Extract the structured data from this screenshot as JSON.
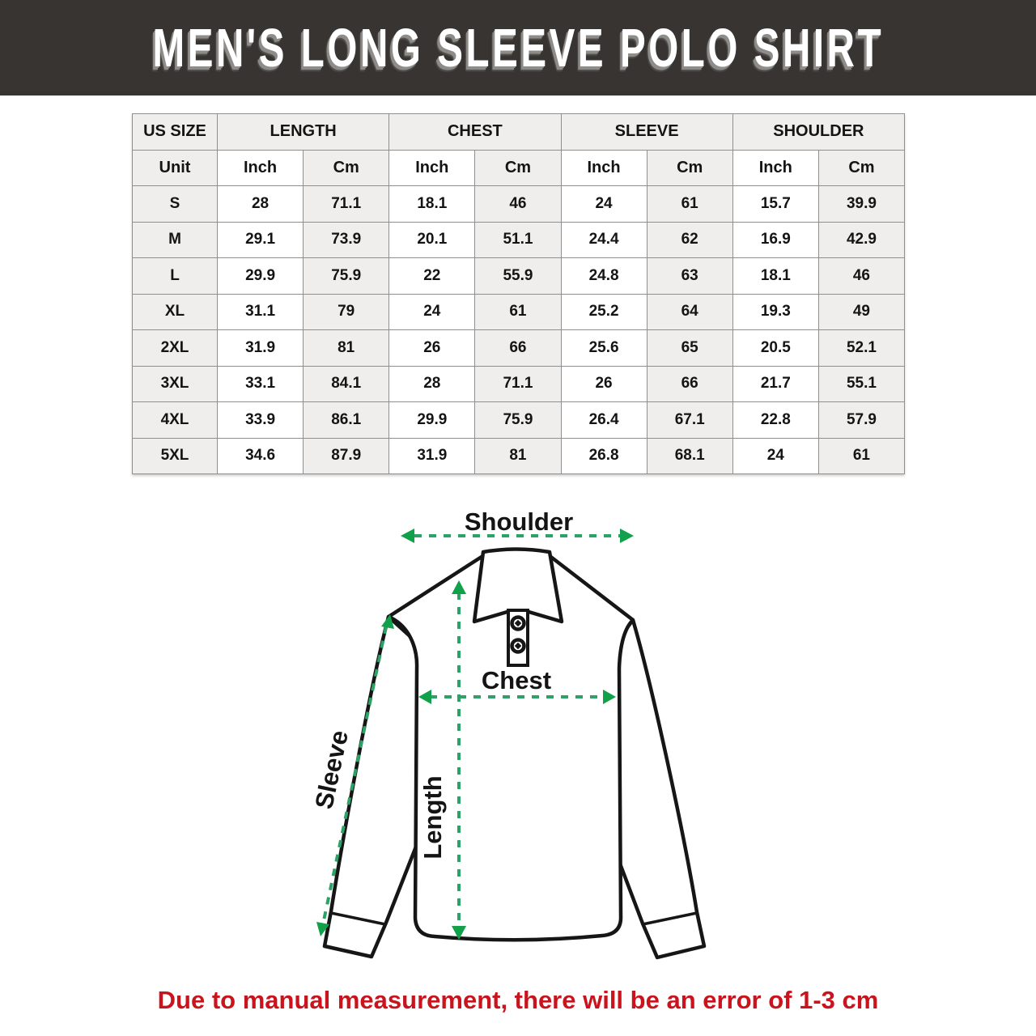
{
  "title": "MEN'S LONG SLEEVE POLO SHIRT",
  "table": {
    "group_headers": [
      "US SIZE",
      "LENGTH",
      "CHEST",
      "SLEEVE",
      "SHOULDER"
    ],
    "unit_header": "Unit",
    "unit_cells": [
      "Inch",
      "Cm",
      "Inch",
      "Cm",
      "Inch",
      "Cm",
      "Inch",
      "Cm"
    ],
    "rows": [
      {
        "size": "S",
        "values": [
          "28",
          "71.1",
          "18.1",
          "46",
          "24",
          "61",
          "15.7",
          "39.9"
        ]
      },
      {
        "size": "M",
        "values": [
          "29.1",
          "73.9",
          "20.1",
          "51.1",
          "24.4",
          "62",
          "16.9",
          "42.9"
        ]
      },
      {
        "size": "L",
        "values": [
          "29.9",
          "75.9",
          "22",
          "55.9",
          "24.8",
          "63",
          "18.1",
          "46"
        ]
      },
      {
        "size": "XL",
        "values": [
          "31.1",
          "79",
          "24",
          "61",
          "25.2",
          "64",
          "19.3",
          "49"
        ]
      },
      {
        "size": "2XL",
        "values": [
          "31.9",
          "81",
          "26",
          "66",
          "25.6",
          "65",
          "20.5",
          "52.1"
        ]
      },
      {
        "size": "3XL",
        "values": [
          "33.1",
          "84.1",
          "28",
          "71.1",
          "26",
          "66",
          "21.7",
          "55.1"
        ]
      },
      {
        "size": "4XL",
        "values": [
          "33.9",
          "86.1",
          "29.9",
          "75.9",
          "26.4",
          "67.1",
          "22.8",
          "57.9"
        ]
      },
      {
        "size": "5XL",
        "values": [
          "34.6",
          "87.9",
          "31.9",
          "81",
          "26.8",
          "68.1",
          "24",
          "61"
        ]
      }
    ]
  },
  "diagram": {
    "labels": {
      "shoulder": "Shoulder",
      "chest": "Chest",
      "sleeve": "Sleeve",
      "length": "Length"
    },
    "arrow_dash_color": "#2da267",
    "arrow_head_color": "#12a14b",
    "outline_color": "#161616"
  },
  "footer": {
    "note": "Due to manual measurement, there will be an error of 1-3 cm"
  },
  "colors": {
    "header_bg": "#373431",
    "title_text": "#ffffff",
    "cell_gray": "#efeeed",
    "cell_white": "#ffffff",
    "table_border": "#8f8f8f",
    "note_red": "#c9141d"
  }
}
